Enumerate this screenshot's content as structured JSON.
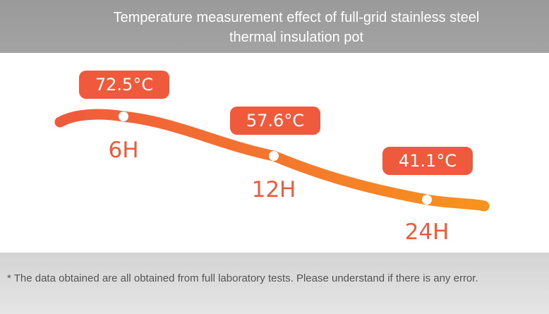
{
  "header": {
    "title": "Temperature measurement effect of full-grid stainless steel thermal insulation pot"
  },
  "chart_data": {
    "type": "line",
    "title": "",
    "categories": [
      "6H",
      "12H",
      "24H"
    ],
    "values": [
      72.5,
      57.6,
      41.1
    ],
    "value_labels": [
      "72.5°C",
      "57.6°C",
      "41.1°C"
    ],
    "unit": "°C",
    "xlabel": "",
    "ylabel": "",
    "grid": false,
    "legend": "none",
    "colors": {
      "line_start": "#f05a3c",
      "line_end": "#f7931e",
      "label_bg": "#f05a3c",
      "label_text": "#ffffff",
      "tick_text": "#f05a3c",
      "marker": "#ffffff"
    }
  },
  "footer": {
    "note": "* The data obtained are all obtained from full laboratory tests. Please understand if there is any error."
  }
}
